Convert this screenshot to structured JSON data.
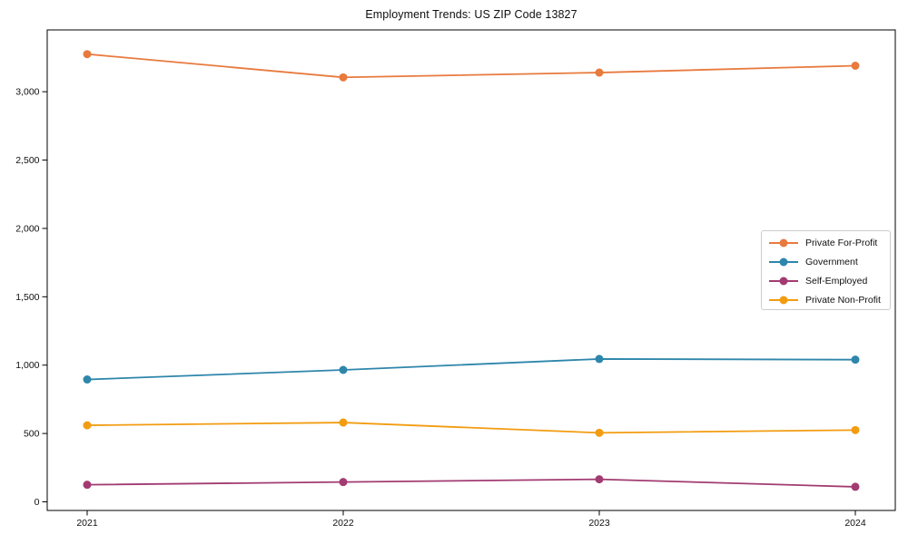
{
  "chart_data": {
    "type": "line",
    "title": "Employment Trends: US ZIP Code 13827",
    "x": [
      "2021",
      "2022",
      "2023",
      "2024"
    ],
    "series": [
      {
        "name": "Private For-Profit",
        "color": "#E87A3E",
        "values": [
          3275,
          3105,
          3140,
          3190
        ]
      },
      {
        "name": "Government",
        "color": "#2E86AB",
        "values": [
          895,
          965,
          1045,
          1040
        ]
      },
      {
        "name": "Self-Employed",
        "color": "#A23B72",
        "values": [
          125,
          145,
          165,
          110
        ]
      },
      {
        "name": "Private Non-Profit",
        "color": "#F29C11",
        "values": [
          560,
          580,
          505,
          525
        ]
      }
    ],
    "xlabel": "",
    "ylabel": "",
    "yticks": [
      0,
      500,
      1000,
      1500,
      2000,
      2500,
      3000
    ],
    "ytick_labels": [
      "0",
      "500",
      "1,000",
      "1,500",
      "2,000",
      "2,500",
      "3,000"
    ],
    "ylim": [
      -63,
      3452
    ],
    "grid": false,
    "legend_position": "center-right",
    "marker": "circle",
    "marker_radius": 4.5,
    "line_width": 1.8,
    "axis_color": "#000000",
    "text_color": "#0f0f0f"
  }
}
